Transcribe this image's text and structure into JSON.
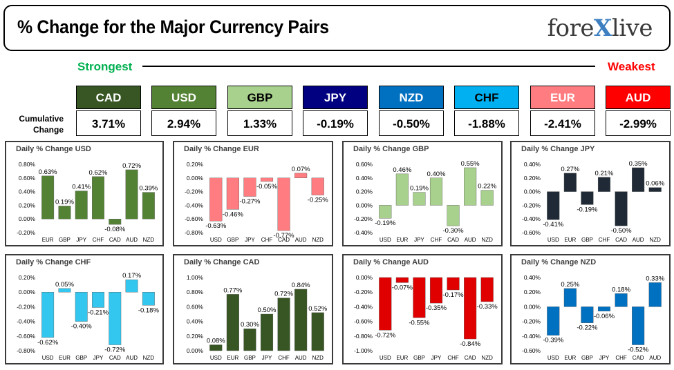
{
  "header": {
    "title": "% Change for the Major Currency Pairs",
    "logo_part1": "fore",
    "logo_x": "X",
    "logo_part2": "live"
  },
  "ranking": {
    "strongest_label": "Strongest",
    "weakest_label": "Weakest",
    "cumulative_label_line1": "Cumulative",
    "cumulative_label_line2": "Change",
    "currencies": [
      {
        "code": "CAD",
        "value": "3.71%",
        "color": "#375623",
        "text_color": "#ffffff"
      },
      {
        "code": "USD",
        "value": "2.94%",
        "color": "#548235",
        "text_color": "#ffffff"
      },
      {
        "code": "GBP",
        "value": "1.33%",
        "color": "#a9d18e",
        "text_color": "#000000"
      },
      {
        "code": "JPY",
        "value": "-0.19%",
        "color": "#000080",
        "text_color": "#ffffff"
      },
      {
        "code": "NZD",
        "value": "-0.50%",
        "color": "#0070c0",
        "text_color": "#ffffff"
      },
      {
        "code": "CHF",
        "value": "-1.88%",
        "color": "#00b0f0",
        "text_color": "#000000"
      },
      {
        "code": "EUR",
        "value": "-2.41%",
        "color": "#ff7c80",
        "text_color": "#ffffff"
      },
      {
        "code": "AUD",
        "value": "-2.99%",
        "color": "#ff0000",
        "text_color": "#ffffff"
      }
    ]
  },
  "chart_data": [
    {
      "type": "bar",
      "title": "Daily % Change USD",
      "color": "#548235",
      "categories": [
        "EUR",
        "GBP",
        "JPY",
        "CHF",
        "CAD",
        "AUD",
        "NZD"
      ],
      "values": [
        0.63,
        0.19,
        0.41,
        0.62,
        -0.08,
        0.72,
        0.39
      ],
      "ylim": [
        -0.2,
        0.8
      ],
      "yticks": [
        "0.80%",
        "0.60%",
        "0.40%",
        "0.20%",
        "0.00%",
        "-0.20%"
      ],
      "labels": [
        "0.63%",
        "0.19%",
        "0.41%",
        "0.62%",
        "-0.08%",
        "0.72%",
        "0.39%"
      ]
    },
    {
      "type": "bar",
      "title": "Daily % Change EUR",
      "color": "#ff7c80",
      "categories": [
        "USD",
        "GBP",
        "JPY",
        "CHF",
        "CAD",
        "AUD",
        "NZD"
      ],
      "values": [
        -0.63,
        -0.46,
        -0.27,
        -0.05,
        -0.77,
        0.07,
        -0.25
      ],
      "ylim": [
        -0.8,
        0.2
      ],
      "yticks": [
        "0.20%",
        "0.00%",
        "-0.20%",
        "-0.40%",
        "-0.60%",
        "-0.80%"
      ],
      "labels": [
        "-0.63%",
        "-0.46%",
        "-0.27%",
        "-0.05%",
        "-0.77%",
        "0.07%",
        "-0.25%"
      ]
    },
    {
      "type": "bar",
      "title": "Daily % Change GBP",
      "color": "#a9d18e",
      "categories": [
        "USD",
        "EUR",
        "JPY",
        "CHF",
        "CAD",
        "AUD",
        "NZD"
      ],
      "values": [
        -0.19,
        0.46,
        0.19,
        0.4,
        -0.3,
        0.55,
        0.22
      ],
      "ylim": [
        -0.4,
        0.6
      ],
      "yticks": [
        "0.60%",
        "0.40%",
        "0.20%",
        "0.00%",
        "-0.20%",
        "-0.40%"
      ],
      "labels": [
        "-0.19%",
        "0.46%",
        "0.19%",
        "0.40%",
        "-0.30%",
        "0.55%",
        "0.22%"
      ]
    },
    {
      "type": "bar",
      "title": "Daily % Change JPY",
      "color": "#1f2a36",
      "categories": [
        "USD",
        "EUR",
        "GBP",
        "CHF",
        "CAD",
        "AUD",
        "NZD"
      ],
      "values": [
        -0.41,
        0.27,
        -0.19,
        0.21,
        -0.5,
        0.35,
        0.06
      ],
      "ylim": [
        -0.6,
        0.4
      ],
      "yticks": [
        "0.40%",
        "0.20%",
        "0.00%",
        "-0.20%",
        "-0.40%",
        "-0.60%"
      ],
      "labels": [
        "-0.41%",
        "0.27%",
        "-0.19%",
        "0.21%",
        "-0.50%",
        "0.35%",
        "0.06%"
      ]
    },
    {
      "type": "bar",
      "title": "Daily % Change CHF",
      "color": "#33c7f0",
      "categories": [
        "USD",
        "EUR",
        "GBP",
        "JPY",
        "CAD",
        "AUD",
        "NZD"
      ],
      "values": [
        -0.62,
        0.05,
        -0.4,
        -0.21,
        -0.72,
        0.17,
        -0.18
      ],
      "ylim": [
        -0.8,
        0.2
      ],
      "yticks": [
        "0.20%",
        "0.00%",
        "-0.20%",
        "-0.40%",
        "-0.60%",
        "-0.80%"
      ],
      "labels": [
        "-0.62%",
        "0.05%",
        "-0.40%",
        "-0.21%",
        "-0.72%",
        "0.17%",
        "-0.18%"
      ]
    },
    {
      "type": "bar",
      "title": "Daily % Change CAD",
      "color": "#375623",
      "categories": [
        "USD",
        "EUR",
        "GBP",
        "JPY",
        "CHF",
        "AUD",
        "NZD"
      ],
      "values": [
        0.08,
        0.77,
        0.3,
        0.5,
        0.72,
        0.84,
        0.52
      ],
      "ylim": [
        0.0,
        1.0
      ],
      "yticks": [
        "1.00%",
        "0.80%",
        "0.60%",
        "0.40%",
        "0.20%",
        "0.00%"
      ],
      "labels": [
        "0.08%",
        "0.77%",
        "0.30%",
        "0.50%",
        "0.72%",
        "0.84%",
        "0.52%"
      ]
    },
    {
      "type": "bar",
      "title": "Daily % Change AUD",
      "color": "#e00000",
      "categories": [
        "USD",
        "EUR",
        "GBP",
        "JPY",
        "CHF",
        "CAD",
        "NZD"
      ],
      "values": [
        -0.72,
        -0.07,
        -0.55,
        -0.35,
        -0.17,
        -0.84,
        -0.33
      ],
      "ylim": [
        -1.0,
        0.0
      ],
      "yticks": [
        "0.00%",
        "-0.20%",
        "-0.40%",
        "-0.60%",
        "-0.80%",
        "-1.00%"
      ],
      "labels": [
        "-0.72%",
        "-0.07%",
        "-0.55%",
        "-0.35%",
        "-0.17%",
        "-0.84%",
        "-0.33%"
      ]
    },
    {
      "type": "bar",
      "title": "Daily % Change NZD",
      "color": "#0070c0",
      "categories": [
        "USD",
        "EUR",
        "GBP",
        "JPY",
        "CHF",
        "CAD",
        "AUD"
      ],
      "values": [
        -0.39,
        0.25,
        -0.22,
        -0.06,
        0.18,
        -0.52,
        0.33
      ],
      "ylim": [
        -0.6,
        0.4
      ],
      "yticks": [
        "0.40%",
        "0.20%",
        "0.00%",
        "-0.20%",
        "-0.40%",
        "-0.60%"
      ],
      "labels": [
        "-0.39%",
        "0.25%",
        "-0.22%",
        "-0.06%",
        "0.18%",
        "-0.52%",
        "0.33%"
      ]
    }
  ]
}
